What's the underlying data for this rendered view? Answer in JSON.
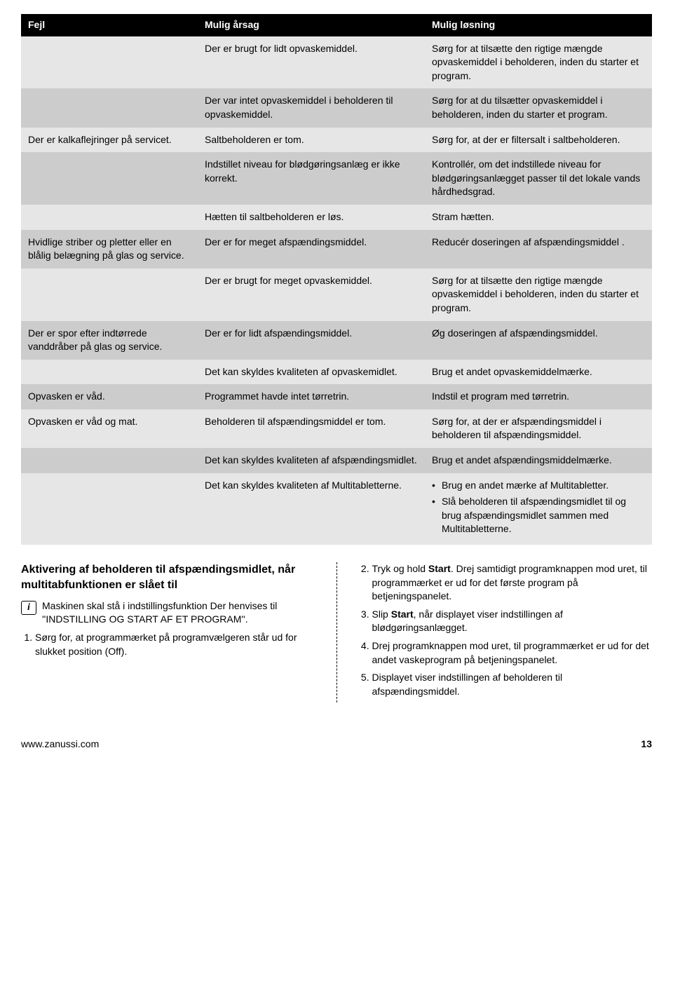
{
  "table": {
    "headers": [
      "Fejl",
      "Mulig årsag",
      "Mulig løsning"
    ],
    "rows": [
      {
        "shade": "light",
        "fejl": "",
        "aarsag": "Der er brugt for lidt opvaskemiddel.",
        "loesning": "Sørg for at tilsætte den rigtige mængde opvaskemiddel i beholderen, inden du starter et program."
      },
      {
        "shade": "dark",
        "fejl": "",
        "aarsag": "Der var intet opvaskemiddel i beholderen til opvaskemiddel.",
        "loesning": "Sørg for at du tilsætter opvaskemiddel i beholderen, inden du starter et program."
      },
      {
        "shade": "light",
        "fejl": "Der er kalkaflejringer på servicet.",
        "aarsag": "Saltbeholderen er tom.",
        "loesning": "Sørg for, at der er filtersalt i saltbeholderen."
      },
      {
        "shade": "dark",
        "fejl": "",
        "aarsag": "Indstillet niveau for blødgøringsanlæg er ikke korrekt.",
        "loesning": "Kontrollér, om det indstillede niveau for blødgøringsanlægget passer til det lokale vands hårdhedsgrad."
      },
      {
        "shade": "light",
        "fejl": "",
        "aarsag": "Hætten til saltbeholderen er løs.",
        "loesning": "Stram hætten."
      },
      {
        "shade": "dark",
        "fejl": "Hvidlige striber og pletter eller en blålig belægning på glas og service.",
        "aarsag": "Der er for meget afspændingsmiddel.",
        "loesning": "Reducér doseringen af afspændingsmiddel\n."
      },
      {
        "shade": "light",
        "fejl": "",
        "aarsag": "Der er brugt for meget opvaskemiddel.",
        "loesning": "Sørg for at tilsætte den rigtige mængde opvaskemiddel i beholderen, inden du starter et program."
      },
      {
        "shade": "dark",
        "fejl": "Der er spor efter indtørrede vanddråber på glas og service.",
        "aarsag": "Der er for lidt afspændingsmiddel.",
        "loesning": "Øg doseringen af afspændingsmiddel."
      },
      {
        "shade": "light",
        "fejl": "",
        "aarsag": "Det kan skyldes kvaliteten af opvaskemidlet.",
        "loesning": "Brug et andet opvaskemiddelmærke."
      },
      {
        "shade": "dark",
        "fejl": "Opvasken er våd.",
        "aarsag": "Programmet havde intet tørretrin.",
        "loesning": "Indstil et program med tørretrin."
      },
      {
        "shade": "light",
        "fejl": "Opvasken er våd og mat.",
        "aarsag": "Beholderen til afspændingsmiddel er tom.",
        "loesning": "Sørg for, at der er afspændingsmiddel i beholderen til afspændingsmiddel."
      },
      {
        "shade": "dark",
        "fejl": "",
        "aarsag": "Det kan skyldes kvaliteten af afspændingsmidlet.",
        "loesning": "Brug et andet afspændingsmiddelmærke."
      },
      {
        "shade": "light",
        "fejl": "",
        "aarsag": "Det kan skyldes kvaliteten af Multitabletterne.",
        "loesning_list": [
          "Brug en andet mærke af Multitabletter.",
          "Slå beholderen til afspændingsmidlet til og brug afspændingsmidlet sammen med Multitabletterne."
        ]
      }
    ]
  },
  "section": {
    "heading": "Aktivering af beholderen til afspændingsmidlet, når multitabfunktionen er slået til",
    "info_text": "Maskinen skal stå i indstillingsfunktion Der henvises til ''INDSTILLING OG START AF ET PROGRAM''.",
    "left_steps": [
      "Sørg for, at programmærket på programvælgeren står ud for slukket position (Off)."
    ],
    "right_steps": [
      {
        "n": "2.",
        "pre": "Tryk og hold ",
        "bold": "Start",
        "post": ". Drej samtidigt programknappen mod uret, til programmærket er ud for det første program på betjeningspanelet."
      },
      {
        "n": "3.",
        "pre": "Slip ",
        "bold": "Start",
        "post": ", når displayet viser indstillingen af blødgøringsanlægget."
      },
      {
        "n": "4.",
        "pre": "",
        "bold": "",
        "post": "Drej programknappen mod uret, til programmærket er ud for det andet vaskeprogram på betjeningspanelet."
      },
      {
        "n": "5.",
        "pre": "",
        "bold": "",
        "post": "Displayet viser indstillingen af beholderen til afspændingsmiddel."
      }
    ]
  },
  "footer": {
    "url": "www.zanussi.com",
    "page": "13"
  },
  "colors": {
    "header_bg": "#000000",
    "header_fg": "#ffffff",
    "light": "#e6e6e6",
    "dark": "#cccccc"
  }
}
